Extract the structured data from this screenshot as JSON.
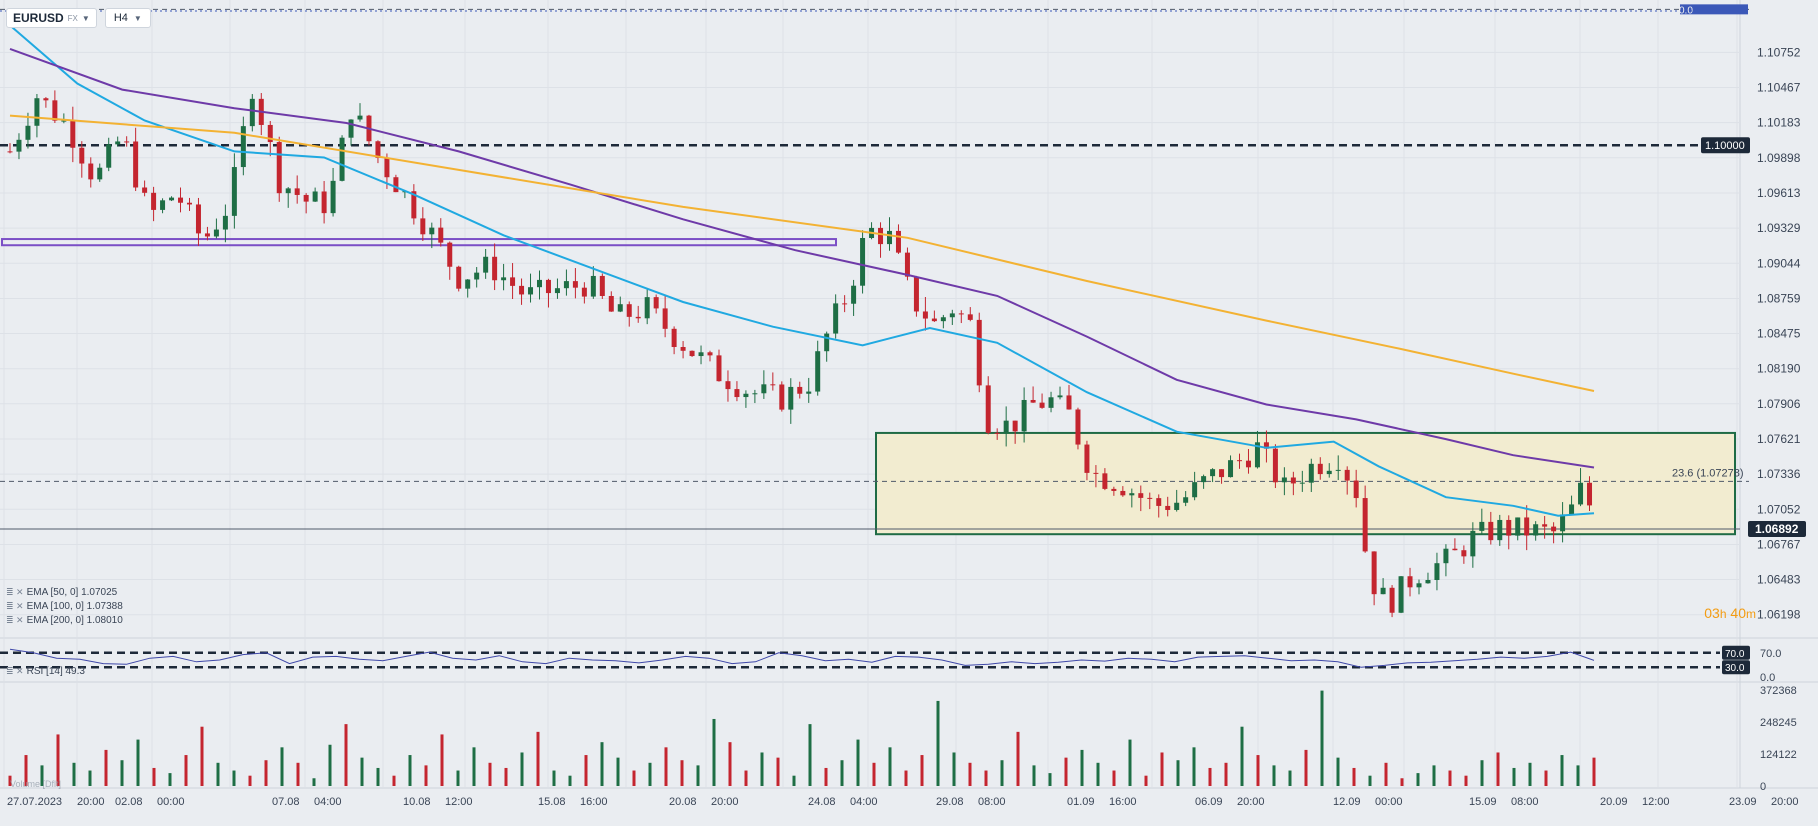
{
  "toolbar": {
    "symbol": "EURUSD",
    "symbol_class": "FX",
    "timeframe": "H4",
    "caret_icon": "chevron-down-icon"
  },
  "countdown": {
    "hours": "03",
    "h_unit": "h",
    "minutes": "40",
    "m_unit": "m"
  },
  "legend": [
    {
      "icons": "≣ ✕",
      "text": "EMA [50, 0] 1.07025"
    },
    {
      "icons": "≣ ✕",
      "text": "EMA [100, 0] 1.07388"
    },
    {
      "icons": "≣ ✕",
      "text": "EMA [200, 0] 1.08010"
    }
  ],
  "rsi_legend": {
    "icons": "≣ ✕",
    "text": "RSI [14] 49.3"
  },
  "volume_legend": {
    "text": "Volume [Dflt]"
  },
  "colors": {
    "bull": "#1e6e45",
    "bear": "#c4252f",
    "ema50": "#20a9e1",
    "ema100": "#6e3aa8",
    "ema200": "#f3b233",
    "zone_fill": "#f2ecd0",
    "zone_border": "#1f6b45",
    "support_band": "#7b4fc6",
    "background": "#eaedf1"
  },
  "chart_data": [
    {
      "type": "candlestick",
      "symbol": "EURUSD",
      "timeframe": "H4",
      "price_axis_ticks": [
        "1.10752",
        "1.10467",
        "1.10183",
        "1.09898",
        "1.09613",
        "1.09329",
        "1.09044",
        "1.08759",
        "1.08475",
        "1.08190",
        "1.07906",
        "1.07621",
        "1.07336",
        "1.07052",
        "1.06767",
        "1.06483",
        "1.06198"
      ],
      "time_axis_ticks": [
        "27.07.2023",
        "20:00",
        "02.08",
        "00:00",
        "07.08",
        "04:00",
        "10.08",
        "12:00",
        "15.08",
        "16:00",
        "20.08",
        "20:00",
        "24.08",
        "04:00",
        "29.08",
        "08:00",
        "01.09",
        "16:00",
        "06.09",
        "20:00",
        "12.09",
        "00:00",
        "15.09",
        "08:00",
        "20.09",
        "12:00",
        "23.09",
        "20:00"
      ],
      "ylim": [
        1.0605,
        1.1103
      ],
      "last_price": "1.06892",
      "level_labels": {
        "round_level": "1.10000",
        "fib": "23.6 (1.07278)",
        "fib_top": "0.0"
      },
      "levels": {
        "round_level": 1.1,
        "fib_236": 1.07278,
        "fib_top": 1.111
      },
      "consolidation_zone": {
        "high": 1.0767,
        "low": 1.0685,
        "from": "25.08",
        "to": "23.09"
      },
      "support_band": {
        "high": 1.0924,
        "low": 1.0919,
        "from": "27.07",
        "to": "25.08"
      },
      "close_path": [
        [
          0,
          1.0995
        ],
        [
          12,
          1.104
        ],
        [
          26,
          1.1015
        ],
        [
          38,
          1.0972
        ],
        [
          50,
          1.1008
        ],
        [
          62,
          1.0942
        ],
        [
          74,
          1.0962
        ],
        [
          86,
          1.0922
        ],
        [
          98,
          1.0953
        ],
        [
          108,
          1.1048
        ],
        [
          120,
          1.0972
        ],
        [
          132,
          1.0955
        ],
        [
          142,
          1.0952
        ],
        [
          152,
          1.103
        ],
        [
          164,
          1.099
        ],
        [
          176,
          1.096
        ],
        [
          188,
          1.0928
        ],
        [
          200,
          1.0893
        ],
        [
          214,
          1.0902
        ],
        [
          230,
          1.0878
        ],
        [
          244,
          1.0883
        ],
        [
          258,
          1.0888
        ],
        [
          270,
          1.086
        ],
        [
          284,
          1.0868
        ],
        [
          298,
          1.0842
        ],
        [
          316,
          1.0815
        ],
        [
          330,
          1.08
        ],
        [
          344,
          1.0795
        ],
        [
          356,
          1.0808
        ],
        [
          366,
          1.0855
        ],
        [
          374,
          1.0882
        ],
        [
          382,
          1.0932
        ],
        [
          392,
          1.0925
        ],
        [
          402,
          1.0875
        ],
        [
          412,
          1.0855
        ],
        [
          420,
          1.0868
        ],
        [
          428,
          1.0855
        ],
        [
          436,
          1.0778
        ],
        [
          446,
          1.0772
        ],
        [
          456,
          1.079
        ],
        [
          464,
          1.0793
        ],
        [
          472,
          1.0782
        ],
        [
          482,
          1.0735
        ],
        [
          496,
          1.0725
        ],
        [
          510,
          1.0708
        ],
        [
          522,
          1.0712
        ],
        [
          534,
          1.073
        ],
        [
          546,
          1.0742
        ],
        [
          556,
          1.0755
        ],
        [
          568,
          1.0722
        ],
        [
          580,
          1.074
        ],
        [
          592,
          1.0748
        ],
        [
          600,
          1.072
        ],
        [
          606,
          1.065
        ],
        [
          614,
          1.0628
        ],
        [
          626,
          1.0652
        ],
        [
          642,
          1.0665
        ],
        [
          652,
          1.0682
        ],
        [
          664,
          1.069
        ],
        [
          676,
          1.0688
        ],
        [
          688,
          1.0686
        ],
        [
          696,
          1.0705
        ],
        [
          702,
          1.0728
        ],
        [
          706,
          1.069
        ]
      ],
      "series": [
        {
          "name": "EMA [50, 0] 1.07025",
          "points": [
            [
              0,
              1.1097
            ],
            [
              30,
              1.105
            ],
            [
              60,
              1.102
            ],
            [
              100,
              1.0995
            ],
            [
              140,
              1.099
            ],
            [
              180,
              1.096
            ],
            [
              220,
              1.0927
            ],
            [
              260,
              1.09
            ],
            [
              300,
              1.0873
            ],
            [
              340,
              1.0853
            ],
            [
              380,
              1.0838
            ],
            [
              410,
              1.0852
            ],
            [
              440,
              1.084
            ],
            [
              480,
              1.08
            ],
            [
              520,
              1.0768
            ],
            [
              560,
              1.0755
            ],
            [
              590,
              1.076
            ],
            [
              610,
              1.074
            ],
            [
              640,
              1.0715
            ],
            [
              670,
              1.0708
            ],
            [
              690,
              1.07
            ],
            [
              706,
              1.0702
            ]
          ]
        },
        {
          "name": "EMA [100, 0] 1.07388",
          "points": [
            [
              0,
              1.1078
            ],
            [
              50,
              1.1045
            ],
            [
              100,
              1.103
            ],
            [
              150,
              1.1018
            ],
            [
              200,
              1.0995
            ],
            [
              250,
              1.0968
            ],
            [
              300,
              1.094
            ],
            [
              350,
              1.0915
            ],
            [
              400,
              1.0895
            ],
            [
              440,
              1.0878
            ],
            [
              480,
              1.0845
            ],
            [
              520,
              1.081
            ],
            [
              560,
              1.079
            ],
            [
              600,
              1.0778
            ],
            [
              640,
              1.0762
            ],
            [
              670,
              1.0749
            ],
            [
              706,
              1.0739
            ]
          ]
        },
        {
          "name": "EMA [200, 0] 1.08010",
          "points": [
            [
              0,
              1.1024
            ],
            [
              100,
              1.101
            ],
            [
              200,
              1.098
            ],
            [
              300,
              1.095
            ],
            [
              400,
              1.0925
            ],
            [
              480,
              1.089
            ],
            [
              560,
              1.0858
            ],
            [
              620,
              1.0835
            ],
            [
              670,
              1.0815
            ],
            [
              706,
              1.0801
            ]
          ]
        }
      ]
    },
    {
      "type": "line",
      "name": "RSI [14] 49.3",
      "ylim": [
        0,
        100
      ],
      "levels": [
        70,
        30
      ],
      "level_labels": [
        "70.0",
        "30.0"
      ],
      "axis_ticks": [
        "70.0",
        "0.0"
      ],
      "values": [
        80,
        70,
        55,
        52,
        40,
        38,
        55,
        60,
        45,
        50,
        65,
        70,
        40,
        58,
        60,
        52,
        48,
        60,
        72,
        55,
        50,
        62,
        45,
        40,
        55,
        50,
        48,
        42,
        50,
        60,
        55,
        40,
        45,
        70,
        62,
        48,
        52,
        44,
        60,
        58,
        50,
        35,
        38,
        45,
        40,
        44,
        50,
        47,
        55,
        52,
        45,
        58,
        60,
        62,
        55,
        48,
        50,
        45,
        30,
        35,
        42,
        44,
        48,
        52,
        58,
        55,
        60,
        72,
        49
      ]
    },
    {
      "type": "bar",
      "name": "Volume [Dflt]",
      "axis_ticks": [
        "372368",
        "248245",
        "124122",
        "0"
      ],
      "ylim": [
        0,
        372368
      ],
      "values": [
        40000,
        120000,
        80000,
        200000,
        90000,
        60000,
        140000,
        100000,
        180000,
        70000,
        50000,
        120000,
        230000,
        90000,
        60000,
        40000,
        100000,
        150000,
        90000,
        30000,
        160000,
        240000,
        110000,
        70000,
        40000,
        120000,
        80000,
        200000,
        60000,
        150000,
        90000,
        70000,
        130000,
        210000,
        60000,
        40000,
        120000,
        170000,
        110000,
        60000,
        90000,
        150000,
        100000,
        80000,
        260000,
        170000,
        60000,
        130000,
        110000,
        40000,
        240000,
        70000,
        100000,
        180000,
        90000,
        150000,
        60000,
        120000,
        330000,
        130000,
        90000,
        60000,
        100000,
        210000,
        80000,
        50000,
        110000,
        140000,
        90000,
        60000,
        180000,
        40000,
        130000,
        100000,
        150000,
        70000,
        90000,
        230000,
        120000,
        80000,
        60000,
        140000,
        370000,
        110000,
        70000,
        40000,
        90000,
        30000,
        50000,
        80000,
        60000,
        40000,
        100000,
        130000,
        70000,
        90000,
        60000,
        120000,
        80000,
        110000
      ],
      "bar_colors_pattern": "alternating by candle direction"
    }
  ]
}
